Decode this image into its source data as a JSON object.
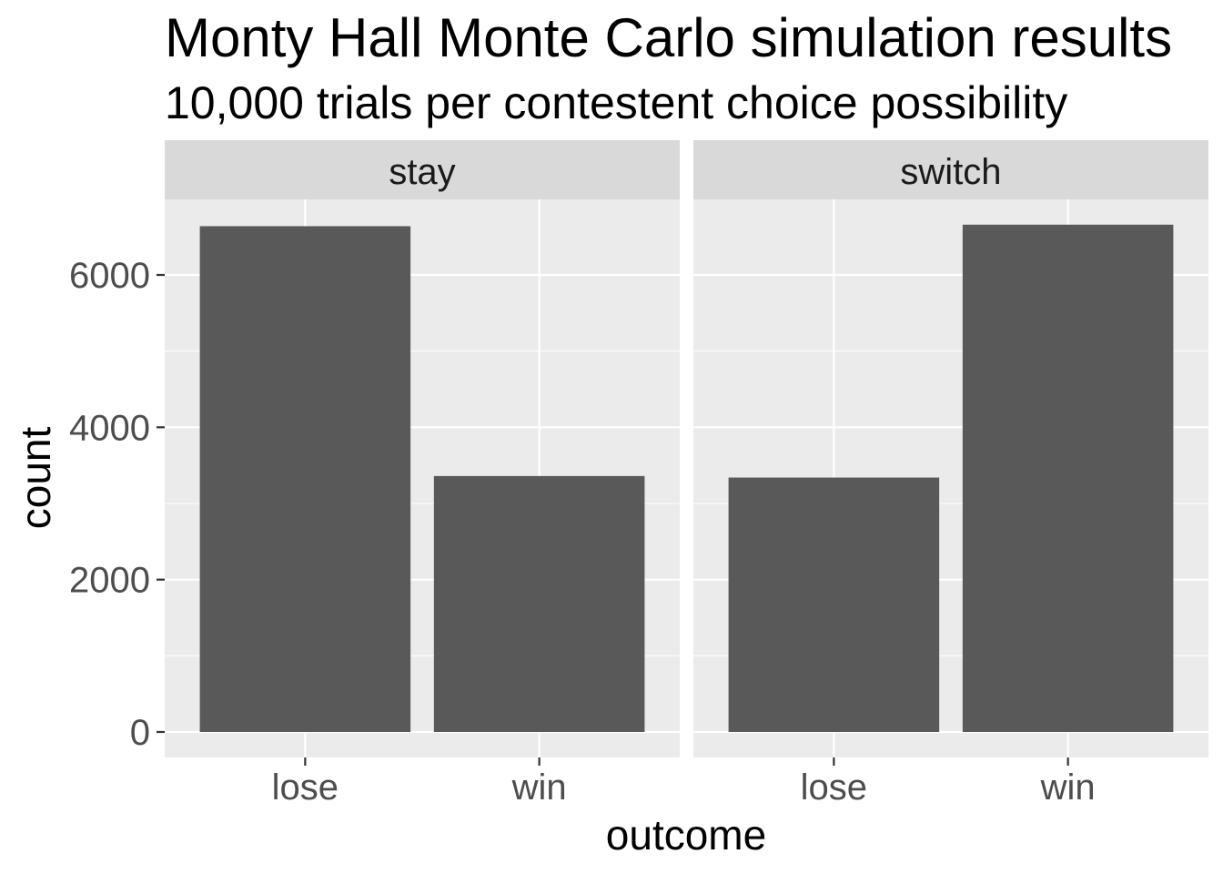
{
  "chart_data": {
    "type": "bar",
    "title": "Monty Hall Monte Carlo simulation results",
    "subtitle": "10,000 trials per contestent choice possibility",
    "xlabel": "outcome",
    "ylabel": "count",
    "categories": [
      "lose",
      "win"
    ],
    "ylim": [
      0,
      7000
    ],
    "yticks": [
      0,
      2000,
      4000,
      6000
    ],
    "grid": true,
    "facets": [
      {
        "label": "stay",
        "values": [
          6640,
          3360
        ]
      },
      {
        "label": "switch",
        "values": [
          3340,
          6660
        ]
      }
    ],
    "colors": {
      "bar": "#595959",
      "panel": "#ebebeb",
      "strip": "#d9d9d9",
      "grid": "#ffffff"
    }
  }
}
